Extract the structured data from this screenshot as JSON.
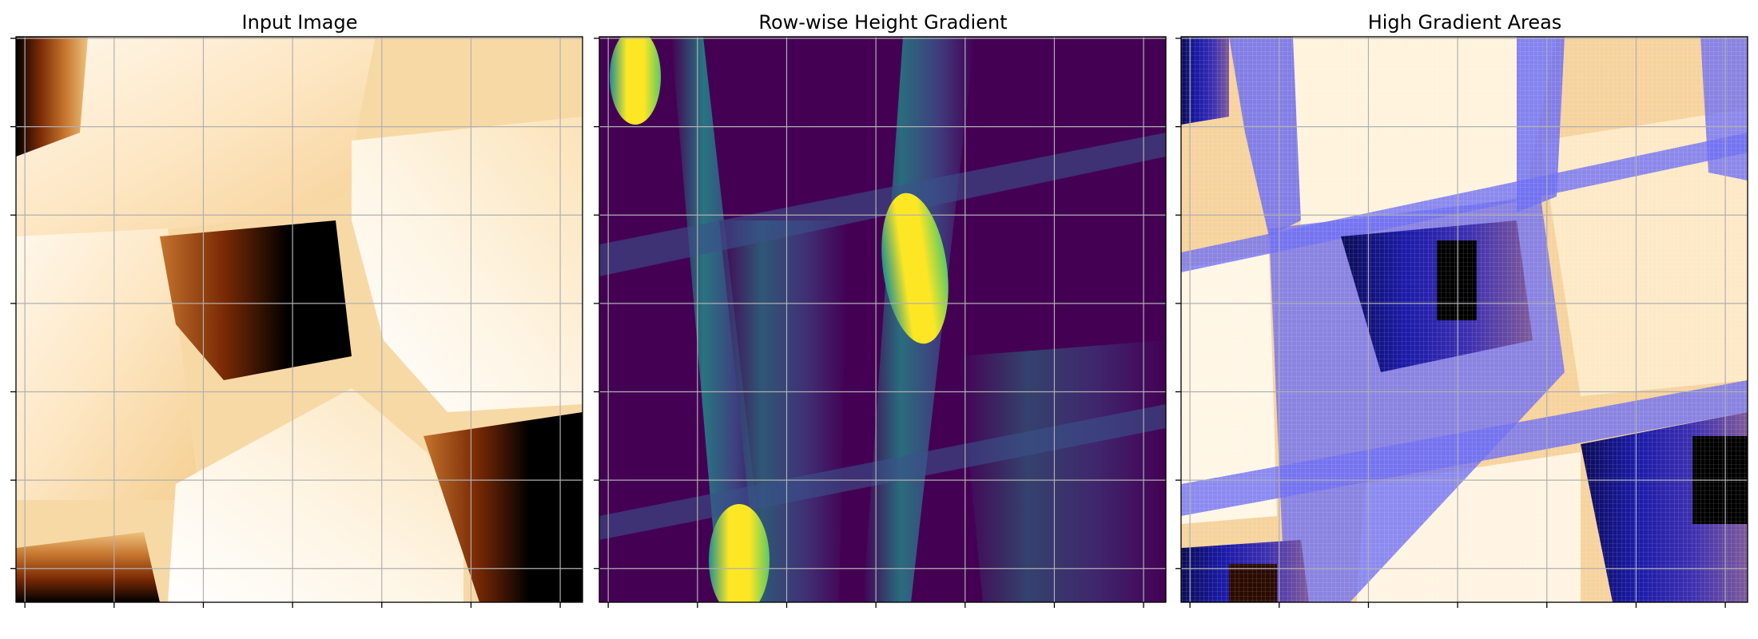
{
  "figure": {
    "titles": [
      "Input Image",
      "Row-wise Height Gradient",
      "High Gradient Areas"
    ]
  },
  "colors": {
    "input_colormap": [
      "#000000",
      "#7a2a05",
      "#c4732d",
      "#eec27c",
      "#fcebcd",
      "#ffffff"
    ],
    "gradient_colormap": [
      "#440154",
      "#3b528b",
      "#21918c",
      "#5ec962",
      "#fde725"
    ],
    "highlight_overlay": "#6f6ff2",
    "grid": "#b0b0b0",
    "axes": "#000000"
  },
  "chart_data": [
    {
      "type": "heatmap",
      "title": "Input Image",
      "colormap": "afmhot",
      "xlabel": "",
      "ylabel": "",
      "grid": true,
      "xtick_count": 7,
      "ytick_count": 7,
      "xlim": [
        0,
        128
      ],
      "ylim": [
        128,
        0
      ]
    },
    {
      "type": "heatmap",
      "title": "Row-wise Height Gradient",
      "colormap": "viridis",
      "xlabel": "",
      "ylabel": "",
      "grid": true,
      "xtick_count": 7,
      "ytick_count": 7,
      "xlim": [
        0,
        128
      ],
      "ylim": [
        128,
        0
      ]
    },
    {
      "type": "heatmap",
      "title": "High Gradient Areas",
      "colormap": "afmhot_with_overlay",
      "xlabel": "",
      "ylabel": "",
      "grid": true,
      "xtick_count": 7,
      "ytick_count": 7,
      "xlim": [
        0,
        128
      ],
      "ylim": [
        128,
        0
      ]
    }
  ]
}
